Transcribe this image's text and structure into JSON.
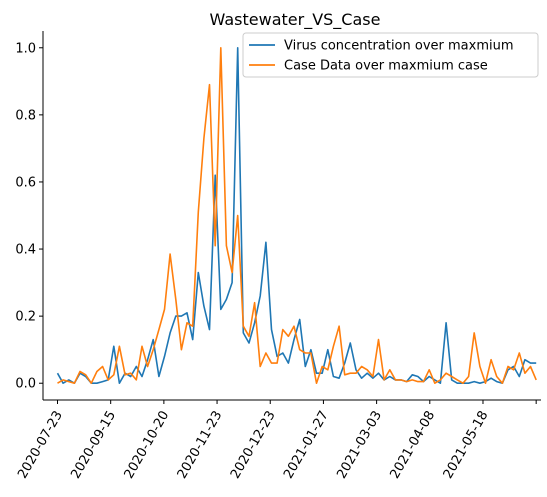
{
  "chart_data": {
    "type": "line",
    "title": "Wastewater_VS_Case",
    "xlabel": "",
    "ylabel": "",
    "ylim": [
      -0.05,
      1.05
    ],
    "yticks": [
      0.0,
      0.2,
      0.4,
      0.6,
      0.8,
      1.0
    ],
    "ytick_labels": [
      "0.0",
      "0.2",
      "0.4",
      "0.6",
      "0.8",
      "1.0"
    ],
    "x_ticks": [
      {
        "label": "2020-07-23",
        "index": 0
      },
      {
        "label": "2020-09-15",
        "index": 11
      },
      {
        "label": "2020-10-20",
        "index": 22
      },
      {
        "label": "2020-11-23",
        "index": 33
      },
      {
        "label": "2020-12-23",
        "index": 44
      },
      {
        "label": "2021-01-27",
        "index": 55
      },
      {
        "label": "2021-03-03",
        "index": 66
      },
      {
        "label": "2021-04-08",
        "index": 77
      },
      {
        "label": "2021-05-18",
        "index": 88
      },
      {
        "label": "",
        "index": 99
      }
    ],
    "legend_position": "top-right",
    "grid": false,
    "series": [
      {
        "name": "Virus concentration over maxmium",
        "color": "#1f77b4",
        "values": [
          0.03,
          0.0,
          0.01,
          0.0,
          0.03,
          0.02,
          0.0,
          0.0,
          0.005,
          0.01,
          0.11,
          0.0,
          0.03,
          0.02,
          0.05,
          0.02,
          0.07,
          0.13,
          0.02,
          0.08,
          0.15,
          0.2,
          0.2,
          0.21,
          0.13,
          0.33,
          0.23,
          0.16,
          0.62,
          0.22,
          0.25,
          0.3,
          1.0,
          0.15,
          0.12,
          0.18,
          0.26,
          0.42,
          0.16,
          0.08,
          0.09,
          0.06,
          0.13,
          0.19,
          0.05,
          0.1,
          0.03,
          0.03,
          0.1,
          0.02,
          0.015,
          0.06,
          0.12,
          0.04,
          0.015,
          0.03,
          0.015,
          0.03,
          0.01,
          0.02,
          0.01,
          0.01,
          0.005,
          0.025,
          0.02,
          0.005,
          0.02,
          0.01,
          0.0,
          0.18,
          0.01,
          0.0,
          0.0,
          0.0,
          0.005,
          0.0,
          0.005,
          0.015,
          0.005,
          0.0,
          0.04,
          0.05,
          0.02,
          0.07,
          0.06,
          0.06
        ]
      },
      {
        "name": "Case Data over maxmium case",
        "color": "#ff7f0e",
        "values": [
          0.0,
          0.01,
          0.005,
          0.0,
          0.035,
          0.025,
          0.0,
          0.035,
          0.05,
          0.01,
          0.025,
          0.11,
          0.025,
          0.03,
          0.01,
          0.11,
          0.05,
          0.1,
          0.16,
          0.22,
          0.385,
          0.25,
          0.1,
          0.18,
          0.17,
          0.51,
          0.73,
          0.89,
          0.41,
          1.0,
          0.41,
          0.33,
          0.5,
          0.17,
          0.14,
          0.24,
          0.05,
          0.09,
          0.06,
          0.06,
          0.16,
          0.14,
          0.17,
          0.1,
          0.09,
          0.09,
          0.0,
          0.05,
          0.04,
          0.11,
          0.17,
          0.025,
          0.03,
          0.03,
          0.05,
          0.04,
          0.02,
          0.13,
          0.01,
          0.04,
          0.01,
          0.01,
          0.005,
          0.01,
          0.005,
          0.005,
          0.04,
          0.0,
          0.01,
          0.03,
          0.02,
          0.01,
          0.0,
          0.02,
          0.15,
          0.05,
          0.0,
          0.07,
          0.02,
          0.0,
          0.05,
          0.04,
          0.09,
          0.03,
          0.05,
          0.01
        ]
      }
    ]
  }
}
